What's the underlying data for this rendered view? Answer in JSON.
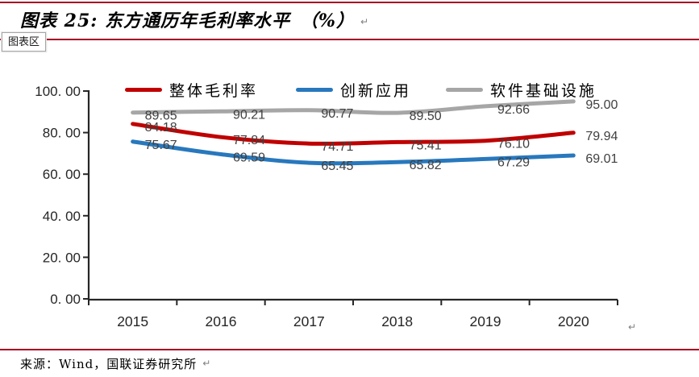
{
  "header": {
    "title": "图表 25: 东方通历年毛利率水平　（%）",
    "return_mark": "↵"
  },
  "tooltip": {
    "label": "图表区"
  },
  "footer": {
    "source": "来源：Wind，国联证券研究所"
  },
  "colors": {
    "rule_accent": "#A50021",
    "axis": "#262626",
    "data_label": "#404040",
    "tick_label": "#262626",
    "series_red": "#C00000",
    "series_blue": "#2878BD",
    "series_gray": "#A6A6A6"
  },
  "chart_data": {
    "type": "line",
    "title": "东方通历年毛利率水平（%）",
    "categories": [
      "2015",
      "2016",
      "2017",
      "2018",
      "2019",
      "2020"
    ],
    "series": [
      {
        "name": "整体毛利率",
        "color": "#C00000",
        "values": [
          84.18,
          77.84,
          74.71,
          75.41,
          76.1,
          79.94
        ]
      },
      {
        "name": "创新应用",
        "color": "#2878BD",
        "values": [
          75.67,
          69.59,
          65.45,
          65.82,
          67.29,
          69.01
        ]
      },
      {
        "name": "软件基础设施",
        "color": "#A6A6A6",
        "values": [
          89.65,
          90.21,
          90.77,
          89.5,
          92.66,
          95.0
        ]
      }
    ],
    "ylim": [
      0,
      100
    ],
    "y_tick_values": [
      0,
      20,
      40,
      60,
      80,
      100
    ],
    "y_tick_labels": [
      "0. 00",
      "20. 00",
      "40. 00",
      "60. 00",
      "80. 00",
      "100. 00"
    ],
    "xlabel": "",
    "ylabel": "",
    "grid": false,
    "legend_position": "top",
    "data_labels": true,
    "smoothed_lines": true
  }
}
